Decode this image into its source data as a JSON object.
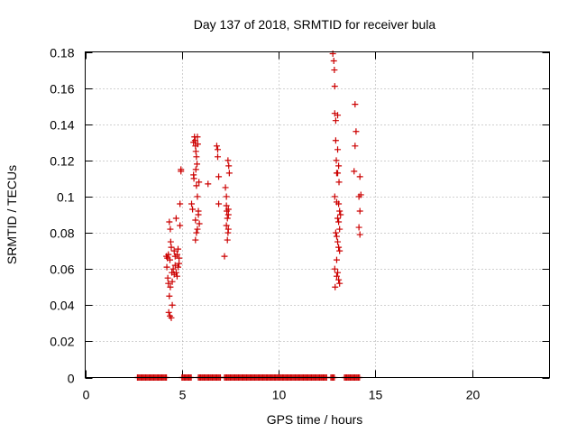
{
  "chart_data": {
    "type": "scatter",
    "title": "Day 137 of 2018, SRMTID for receiver bula",
    "xlabel": "GPS time / hours",
    "ylabel": "SRMTID / TECUs",
    "xlim": [
      0,
      24
    ],
    "ylim": [
      0,
      0.18
    ],
    "xticks": [
      0,
      5,
      10,
      15,
      20
    ],
    "xtick_labels": [
      "0",
      "5",
      "10",
      "15",
      "20"
    ],
    "yticks": [
      0,
      0.02,
      0.04,
      0.06,
      0.08,
      0.1,
      0.12,
      0.14,
      0.16,
      0.18
    ],
    "ytick_labels": [
      "0",
      "0.02",
      "0.04",
      "0.06",
      "0.08",
      "0.1",
      "0.12",
      "0.14",
      "0.16",
      "0.18"
    ],
    "grid": true,
    "marker": "+",
    "color": "#cc0000",
    "series": [
      {
        "name": "SRMTID",
        "points": [
          [
            4.2,
            0.067
          ],
          [
            4.25,
            0.066
          ],
          [
            4.3,
            0.068
          ],
          [
            4.22,
            0.061
          ],
          [
            4.27,
            0.055
          ],
          [
            4.3,
            0.052
          ],
          [
            4.35,
            0.045
          ],
          [
            4.4,
            0.05
          ],
          [
            4.32,
            0.036
          ],
          [
            4.38,
            0.034
          ],
          [
            4.45,
            0.033
          ],
          [
            4.5,
            0.04
          ],
          [
            4.35,
            0.086
          ],
          [
            4.4,
            0.082
          ],
          [
            4.42,
            0.075
          ],
          [
            4.45,
            0.072
          ],
          [
            4.38,
            0.065
          ],
          [
            4.48,
            0.058
          ],
          [
            4.5,
            0.053
          ],
          [
            4.55,
            0.06
          ],
          [
            4.6,
            0.057
          ],
          [
            4.65,
            0.062
          ],
          [
            4.7,
            0.058
          ],
          [
            4.75,
            0.056
          ],
          [
            4.8,
            0.061
          ],
          [
            4.85,
            0.063
          ],
          [
            4.6,
            0.07
          ],
          [
            4.65,
            0.067
          ],
          [
            4.7,
            0.088
          ],
          [
            4.75,
            0.068
          ],
          [
            4.8,
            0.071
          ],
          [
            4.85,
            0.066
          ],
          [
            4.9,
            0.084
          ],
          [
            4.9,
            0.096
          ],
          [
            4.95,
            0.114
          ],
          [
            4.95,
            0.115
          ],
          [
            5.5,
            0.096
          ],
          [
            5.55,
            0.093
          ],
          [
            5.6,
            0.112
          ],
          [
            5.62,
            0.11
          ],
          [
            5.65,
            0.133
          ],
          [
            5.68,
            0.131
          ],
          [
            5.7,
            0.128
          ],
          [
            5.72,
            0.125
          ],
          [
            5.75,
            0.122
          ],
          [
            5.6,
            0.13
          ],
          [
            5.8,
            0.133
          ],
          [
            5.82,
            0.129
          ],
          [
            5.78,
            0.118
          ],
          [
            5.72,
            0.115
          ],
          [
            5.75,
            0.106
          ],
          [
            5.8,
            0.1
          ],
          [
            5.85,
            0.092
          ],
          [
            5.7,
            0.087
          ],
          [
            5.75,
            0.08
          ],
          [
            5.8,
            0.082
          ],
          [
            5.7,
            0.076
          ],
          [
            5.85,
            0.09
          ],
          [
            5.9,
            0.085
          ],
          [
            5.88,
            0.108
          ],
          [
            6.35,
            0.107
          ],
          [
            6.8,
            0.128
          ],
          [
            6.85,
            0.126
          ],
          [
            6.85,
            0.122
          ],
          [
            6.9,
            0.111
          ],
          [
            6.9,
            0.096
          ],
          [
            7.2,
            0.067
          ],
          [
            7.25,
            0.105
          ],
          [
            7.3,
            0.1
          ],
          [
            7.3,
            0.095
          ],
          [
            7.32,
            0.092
          ],
          [
            7.35,
            0.088
          ],
          [
            7.3,
            0.084
          ],
          [
            7.38,
            0.08
          ],
          [
            7.4,
            0.082
          ],
          [
            7.35,
            0.076
          ],
          [
            7.4,
            0.093
          ],
          [
            7.4,
            0.09
          ],
          [
            7.38,
            0.12
          ],
          [
            7.42,
            0.117
          ],
          [
            7.45,
            0.113
          ],
          [
            12.8,
            0.179
          ],
          [
            12.85,
            0.175
          ],
          [
            12.88,
            0.17
          ],
          [
            12.9,
            0.161
          ],
          [
            12.9,
            0.146
          ],
          [
            12.95,
            0.142
          ],
          [
            13.05,
            0.145
          ],
          [
            12.95,
            0.131
          ],
          [
            13.05,
            0.126
          ],
          [
            12.98,
            0.12
          ],
          [
            13.0,
            0.113
          ],
          [
            13.1,
            0.117
          ],
          [
            13.05,
            0.113
          ],
          [
            13.12,
            0.108
          ],
          [
            12.9,
            0.1
          ],
          [
            13.0,
            0.097
          ],
          [
            13.1,
            0.096
          ],
          [
            13.15,
            0.092
          ],
          [
            13.2,
            0.09
          ],
          [
            13.05,
            0.088
          ],
          [
            13.1,
            0.086
          ],
          [
            13.15,
            0.082
          ],
          [
            12.95,
            0.08
          ],
          [
            13.0,
            0.078
          ],
          [
            13.05,
            0.075
          ],
          [
            13.1,
            0.072
          ],
          [
            13.0,
            0.065
          ],
          [
            12.9,
            0.06
          ],
          [
            13.05,
            0.058
          ],
          [
            13.0,
            0.056
          ],
          [
            13.1,
            0.054
          ],
          [
            13.15,
            0.052
          ],
          [
            12.92,
            0.05
          ],
          [
            13.15,
            0.07
          ],
          [
            13.95,
            0.151
          ],
          [
            14.0,
            0.136
          ],
          [
            13.95,
            0.128
          ],
          [
            13.9,
            0.114
          ],
          [
            14.2,
            0.111
          ],
          [
            14.15,
            0.1
          ],
          [
            14.25,
            0.101
          ],
          [
            14.2,
            0.092
          ],
          [
            14.15,
            0.083
          ],
          [
            14.2,
            0.079
          ]
        ],
        "zero_segments": [
          [
            2.7,
            4.2
          ],
          [
            5.0,
            5.5
          ],
          [
            5.85,
            7.0
          ],
          [
            7.2,
            12.5
          ],
          [
            12.7,
            12.9
          ],
          [
            13.4,
            14.2
          ]
        ]
      }
    ]
  }
}
